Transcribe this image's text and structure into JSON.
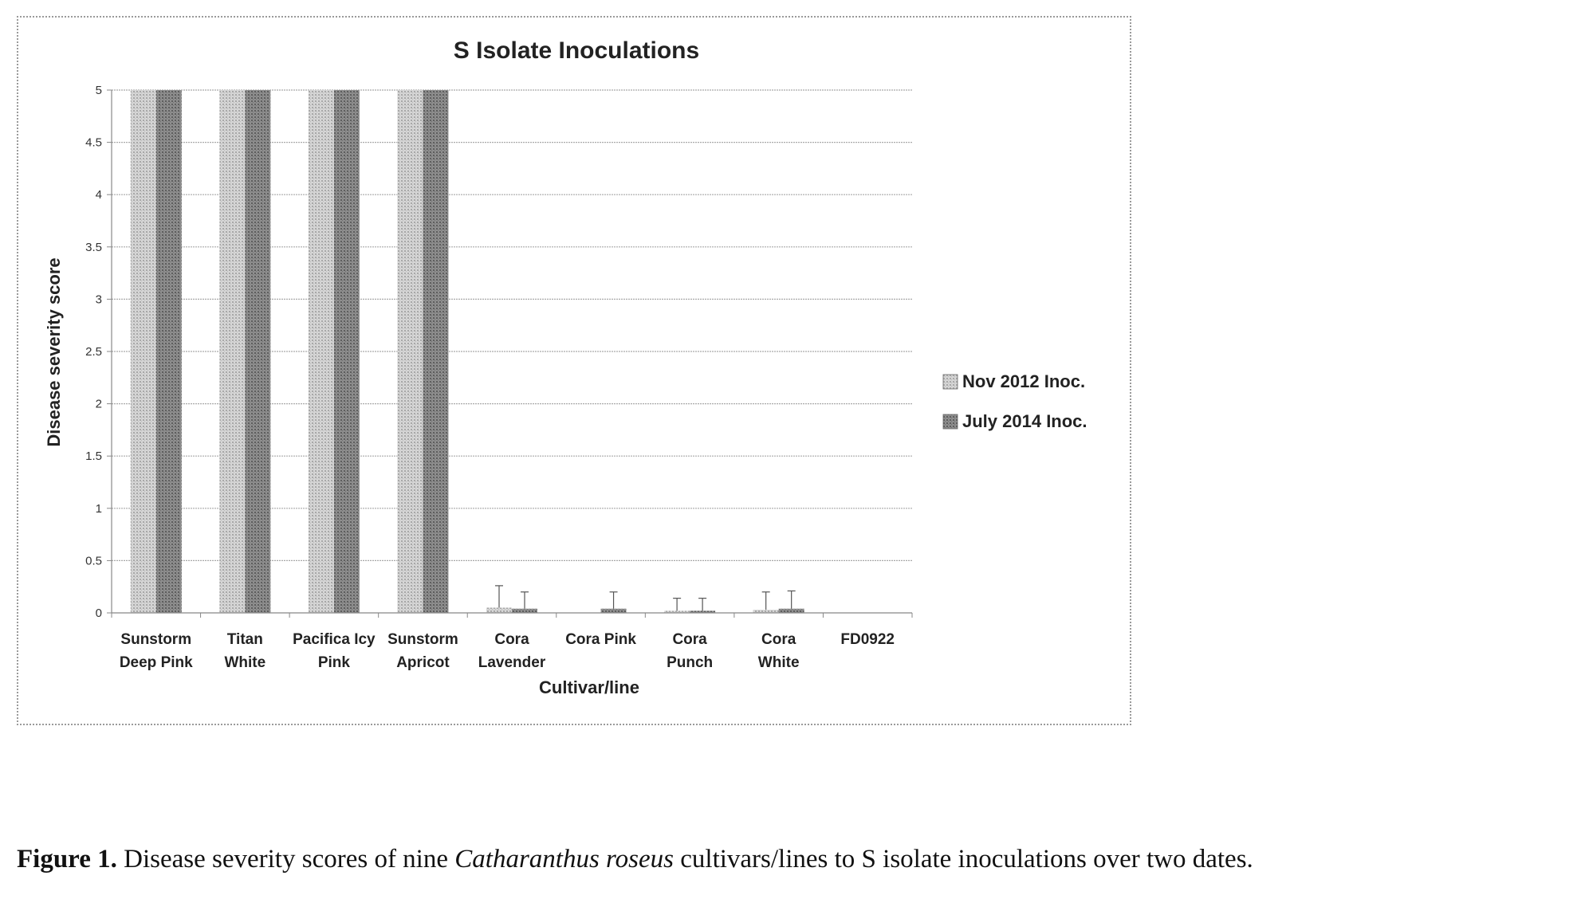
{
  "chart_data": {
    "type": "bar",
    "title": "S Isolate Inoculations",
    "xlabel": "Cultivar/line",
    "ylabel": "Disease severity score",
    "ylim": [
      0,
      5
    ],
    "yticks": [
      "0",
      "0.5",
      "1",
      "1.5",
      "2",
      "2.5",
      "3",
      "3.5",
      "4",
      "4.5",
      "5"
    ],
    "categories": [
      [
        "Sunstorm",
        "Deep Pink"
      ],
      [
        "Titan",
        "White"
      ],
      [
        "Pacifica Icy",
        "Pink"
      ],
      [
        "Sunstorm",
        "Apricot"
      ],
      [
        "Cora",
        "Lavender"
      ],
      [
        "Cora Pink"
      ],
      [
        "Cora",
        "Punch"
      ],
      [
        "Cora",
        "White"
      ],
      [
        "FD0922"
      ]
    ],
    "series": [
      {
        "name": "Nov 2012 Inoc.",
        "color": "#c4c4c4",
        "values": [
          5,
          5,
          5,
          5,
          0.05,
          0,
          0.02,
          0.03,
          0
        ],
        "error": [
          0,
          0,
          0,
          0,
          0.21,
          0,
          0.12,
          0.17,
          0
        ]
      },
      {
        "name": "July 2014 Inoc.",
        "color": "#7c7c7c",
        "values": [
          5,
          5,
          5,
          5,
          0.04,
          0.04,
          0.02,
          0.04,
          0
        ],
        "error": [
          0,
          0,
          0,
          0,
          0.16,
          0.16,
          0.12,
          0.17,
          0
        ]
      }
    ],
    "grid": true,
    "legend": "right"
  },
  "caption": {
    "label": "Figure 1.",
    "text_before": " Disease severity scores of nine ",
    "species": "Catharanthus roseus",
    "text_after": " cultivars/lines to S isolate inoculations over two dates."
  }
}
